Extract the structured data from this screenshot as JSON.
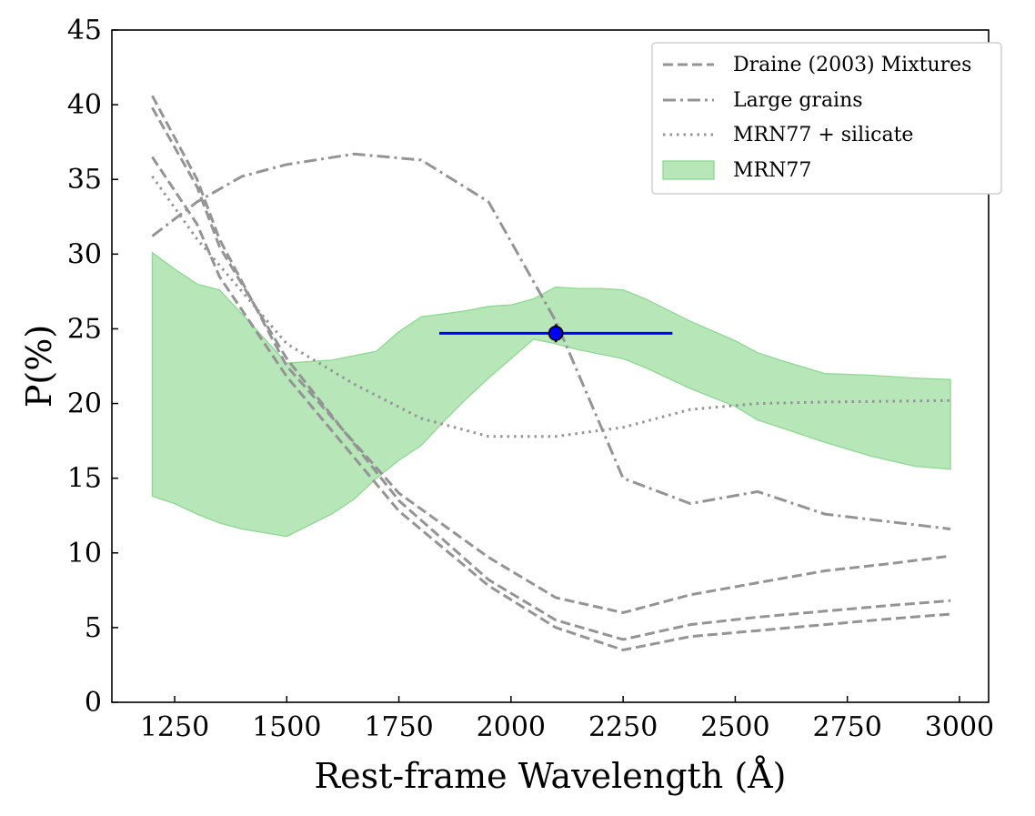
{
  "chart_data": {
    "type": "line",
    "xlabel": "Rest-frame Wavelength (Å)",
    "ylabel": "P(%)",
    "xlim": [
      1110,
      3065
    ],
    "ylim": [
      0,
      45
    ],
    "xticks": [
      1250,
      1500,
      1750,
      2000,
      2250,
      2500,
      2750,
      3000
    ],
    "yticks": [
      0,
      5,
      10,
      15,
      20,
      25,
      30,
      35,
      40,
      45
    ],
    "grid": false,
    "legend_position": "top-right",
    "legend": [
      {
        "label": "Draine (2003) Mixtures",
        "style": "dashed"
      },
      {
        "label": "Large grains",
        "style": "dashdot"
      },
      {
        "label": "MRN77 + silicate",
        "style": "dotted"
      },
      {
        "label": "MRN77",
        "style": "fill"
      }
    ],
    "colors": {
      "model": "#949494",
      "fill": "#b7e6b9",
      "fill_edge": "#8fd892",
      "point": "#0000ff"
    },
    "series": [
      {
        "name": "Draine (2003) Mixtures",
        "style": "dashed",
        "x": [
          1200,
          1300,
          1350,
          1500,
          1750,
          1950,
          2100,
          2250,
          2400,
          2550,
          2700,
          2850,
          2980
        ],
        "y": [
          40.6,
          35.0,
          31.0,
          22.5,
          14.0,
          9.7,
          7.0,
          6.0,
          7.2,
          8.0,
          8.8,
          9.3,
          9.8
        ]
      },
      {
        "series_group": "Draine (2003) Mixtures",
        "style": "dashed",
        "x": [
          1200,
          1300,
          1350,
          1500,
          1750,
          1950,
          2100,
          2250,
          2400,
          2550,
          2700,
          2850,
          2980
        ],
        "y": [
          39.8,
          34.5,
          30.5,
          23.0,
          13.5,
          8.2,
          5.5,
          4.2,
          5.2,
          5.7,
          6.1,
          6.5,
          6.8
        ]
      },
      {
        "series_group": "Draine (2003) Mixtures",
        "style": "dashed",
        "x": [
          1200,
          1300,
          1350,
          1500,
          1750,
          1950,
          2100,
          2250,
          2400,
          2550,
          2700,
          2850,
          2980
        ],
        "y": [
          36.5,
          32.0,
          28.5,
          21.8,
          12.8,
          7.8,
          5.0,
          3.5,
          4.4,
          4.8,
          5.2,
          5.6,
          5.9
        ]
      },
      {
        "name": "Large grains",
        "style": "dashdot",
        "x": [
          1200,
          1300,
          1400,
          1500,
          1650,
          1800,
          1950,
          2100,
          2250,
          2400,
          2550,
          2700,
          2980
        ],
        "y": [
          31.2,
          33.5,
          35.2,
          36.0,
          36.7,
          36.3,
          33.5,
          25.5,
          15.0,
          13.3,
          14.1,
          12.6,
          11.6
        ]
      },
      {
        "name": "MRN77 + silicate",
        "style": "dotted",
        "x": [
          1200,
          1300,
          1400,
          1500,
          1650,
          1800,
          1950,
          2100,
          2250,
          2400,
          2550,
          2700,
          2980
        ],
        "y": [
          35.2,
          31.0,
          27.5,
          24.0,
          21.3,
          19.0,
          17.8,
          17.8,
          18.4,
          19.6,
          20.0,
          20.1,
          20.2
        ]
      }
    ],
    "band": {
      "name": "MRN77",
      "x": [
        1200,
        1250,
        1300,
        1350,
        1400,
        1500,
        1600,
        1650,
        1700,
        1750,
        1800,
        1850,
        1900,
        1950,
        2000,
        2050,
        2100,
        2150,
        2200,
        2250,
        2300,
        2400,
        2500,
        2550,
        2600,
        2700,
        2800,
        2900,
        2980
      ],
      "upper": [
        30.1,
        29.0,
        28.0,
        27.6,
        26.0,
        22.7,
        22.9,
        23.2,
        23.5,
        24.8,
        25.8,
        26.0,
        26.2,
        26.5,
        26.6,
        27.0,
        27.8,
        27.7,
        27.7,
        27.6,
        27.0,
        25.5,
        24.2,
        23.4,
        22.9,
        22.0,
        21.9,
        21.7,
        21.6
      ],
      "lower": [
        13.8,
        13.3,
        12.6,
        12.0,
        11.6,
        11.1,
        12.6,
        13.6,
        15.0,
        16.2,
        17.2,
        18.8,
        20.3,
        21.7,
        23.0,
        24.3,
        24.0,
        23.6,
        23.3,
        23.0,
        22.4,
        21.0,
        19.8,
        18.9,
        18.4,
        17.4,
        16.5,
        15.8,
        15.6
      ]
    },
    "point": {
      "x": 2100,
      "y": 24.7,
      "x_low": 1840,
      "x_high": 2360,
      "y_err": 0.6
    }
  }
}
